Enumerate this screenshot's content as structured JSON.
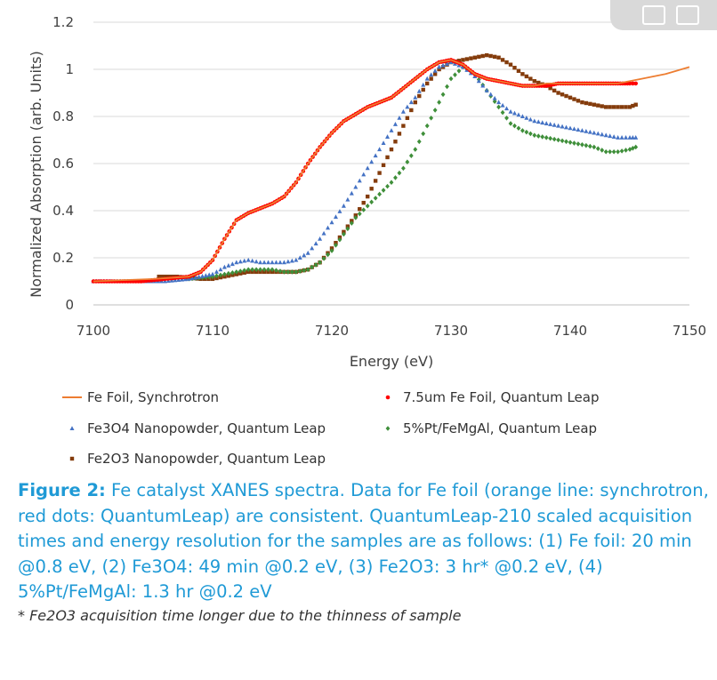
{
  "chart_data": {
    "type": "scatter",
    "title": "",
    "xlabel": "Energy (eV)",
    "ylabel": "Normalized Absorption (arb. Units)",
    "xlim": [
      7100,
      7150
    ],
    "ylim": [
      0,
      1.2
    ],
    "xticks": [
      "7100",
      "7110",
      "7120",
      "7130",
      "7140",
      "7150"
    ],
    "yticks": [
      "0",
      "0.2",
      "0.4",
      "0.6",
      "0.8",
      "1",
      "1.2"
    ],
    "grid": "horizontal",
    "legend_position": "bottom",
    "series": [
      {
        "name": "Fe Foil, Synchrotron",
        "style": "line",
        "color": "#ed7d31",
        "x": [
          7100,
          7105,
          7108,
          7109,
          7110,
          7111,
          7112,
          7113,
          7114,
          7115,
          7116,
          7117,
          7118,
          7119,
          7120,
          7121,
          7122,
          7123,
          7124,
          7125,
          7126,
          7127,
          7128,
          7129,
          7130,
          7131,
          7132,
          7133,
          7134,
          7135,
          7136,
          7137,
          7138,
          7140,
          7142,
          7144,
          7146,
          7148,
          7150
        ],
        "y": [
          0.1,
          0.11,
          0.12,
          0.14,
          0.19,
          0.28,
          0.36,
          0.39,
          0.41,
          0.43,
          0.46,
          0.52,
          0.6,
          0.67,
          0.73,
          0.78,
          0.81,
          0.84,
          0.86,
          0.88,
          0.92,
          0.96,
          1.0,
          1.03,
          1.04,
          1.02,
          0.98,
          0.96,
          0.95,
          0.94,
          0.93,
          0.93,
          0.94,
          0.94,
          0.94,
          0.94,
          0.96,
          0.98,
          1.01
        ]
      },
      {
        "name": "7.5um Fe Foil, Quantum Leap",
        "style": "dots",
        "color": "#ff0000",
        "x": [
          7100,
          7102,
          7104,
          7106,
          7108,
          7109,
          7110,
          7111,
          7112,
          7113,
          7114,
          7115,
          7116,
          7117,
          7118,
          7119,
          7120,
          7121,
          7122,
          7123,
          7124,
          7125,
          7126,
          7127,
          7128,
          7129,
          7130,
          7131,
          7132,
          7133,
          7134,
          7135,
          7136,
          7137,
          7138,
          7139,
          7140,
          7141,
          7142,
          7143,
          7144,
          7145,
          7145.5
        ],
        "y": [
          0.1,
          0.1,
          0.1,
          0.11,
          0.12,
          0.14,
          0.19,
          0.28,
          0.36,
          0.39,
          0.41,
          0.43,
          0.46,
          0.52,
          0.6,
          0.67,
          0.73,
          0.78,
          0.81,
          0.84,
          0.86,
          0.88,
          0.92,
          0.96,
          1.0,
          1.03,
          1.04,
          1.02,
          0.98,
          0.96,
          0.95,
          0.94,
          0.93,
          0.93,
          0.93,
          0.94,
          0.94,
          0.94,
          0.94,
          0.94,
          0.94,
          0.94,
          0.94
        ]
      },
      {
        "name": "Fe3O4 Nanopowder, Quantum Leap",
        "style": "triangles",
        "color": "#4472c4",
        "x": [
          7100,
          7102,
          7104,
          7106,
          7108,
          7110,
          7111,
          7112,
          7113,
          7114,
          7115,
          7116,
          7117,
          7118,
          7119,
          7120,
          7121,
          7122,
          7123,
          7124,
          7125,
          7126,
          7127,
          7128,
          7129,
          7130,
          7131,
          7132,
          7133,
          7134,
          7135,
          7136,
          7137,
          7138,
          7139,
          7140,
          7141,
          7142,
          7143,
          7144,
          7145,
          7145.5
        ],
        "y": [
          0.1,
          0.1,
          0.1,
          0.1,
          0.11,
          0.13,
          0.16,
          0.18,
          0.19,
          0.18,
          0.18,
          0.18,
          0.19,
          0.22,
          0.28,
          0.35,
          0.42,
          0.5,
          0.58,
          0.66,
          0.74,
          0.82,
          0.88,
          0.96,
          1.01,
          1.03,
          1.01,
          0.97,
          0.91,
          0.86,
          0.82,
          0.8,
          0.78,
          0.77,
          0.76,
          0.75,
          0.74,
          0.73,
          0.72,
          0.71,
          0.71,
          0.71
        ]
      },
      {
        "name": "5%Pt/FeMgAl, Quantum Leap",
        "style": "diamonds",
        "color": "#3f8f3a",
        "x": [
          7108,
          7110,
          7111,
          7112,
          7113,
          7114,
          7115,
          7116,
          7117,
          7118,
          7119,
          7120,
          7121,
          7122,
          7123,
          7124,
          7125,
          7126,
          7127,
          7128,
          7129,
          7130,
          7131,
          7132,
          7133,
          7134,
          7135,
          7136,
          7137,
          7138,
          7139,
          7140,
          7141,
          7142,
          7143,
          7144,
          7145,
          7145.5
        ],
        "y": [
          0.11,
          0.12,
          0.13,
          0.14,
          0.15,
          0.15,
          0.15,
          0.14,
          0.14,
          0.15,
          0.18,
          0.23,
          0.3,
          0.37,
          0.42,
          0.47,
          0.52,
          0.58,
          0.66,
          0.76,
          0.86,
          0.96,
          1.01,
          0.98,
          0.91,
          0.84,
          0.77,
          0.74,
          0.72,
          0.71,
          0.7,
          0.69,
          0.68,
          0.67,
          0.65,
          0.65,
          0.66,
          0.67
        ]
      },
      {
        "name": "Fe2O3 Nanopowder, Quantum Leap",
        "style": "squares",
        "color": "#843c0c",
        "x": [
          7105.5,
          7107,
          7109,
          7110,
          7111,
          7112,
          7113,
          7114,
          7115,
          7116,
          7117,
          7118,
          7119,
          7120,
          7121,
          7122,
          7123,
          7124,
          7125,
          7126,
          7127,
          7128,
          7129,
          7130,
          7131,
          7132,
          7133,
          7134,
          7135,
          7136,
          7137,
          7138,
          7139,
          7140,
          7141,
          7142,
          7143,
          7144,
          7145,
          7145.5
        ],
        "y": [
          0.12,
          0.12,
          0.11,
          0.11,
          0.12,
          0.13,
          0.14,
          0.14,
          0.14,
          0.14,
          0.14,
          0.15,
          0.18,
          0.24,
          0.31,
          0.38,
          0.46,
          0.56,
          0.66,
          0.76,
          0.86,
          0.94,
          1.0,
          1.03,
          1.04,
          1.05,
          1.06,
          1.05,
          1.02,
          0.98,
          0.95,
          0.93,
          0.9,
          0.88,
          0.86,
          0.85,
          0.84,
          0.84,
          0.84,
          0.85
        ]
      }
    ]
  },
  "caption": {
    "label": "Figure 2:",
    "text": "Fe catalyst XANES spectra. Data for Fe foil (orange line: synchrotron, red dots: QuantumLeap) are consistent. QuantumLeap-210 scaled acquisition times and energy resolution for the samples are as follows: (1) Fe foil: 20 min @0.8 eV, (2) Fe3O4: 49 min @0.2 eV, (3) Fe2O3: 3 hr* @0.2 eV, (4) 5%Pt/FeMgAl: 1.3 hr @0.2 eV",
    "note": "* Fe2O3 acquisition time longer due to the thinness of sample"
  }
}
